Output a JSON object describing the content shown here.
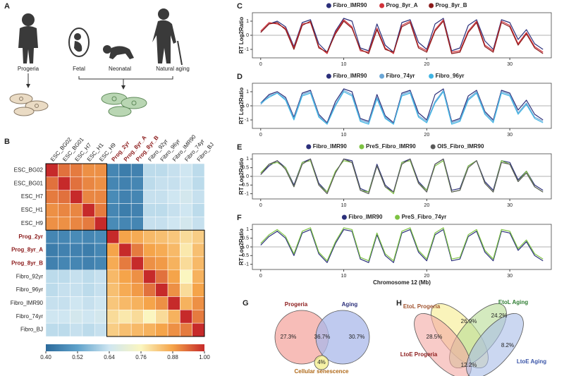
{
  "panel_labels": [
    "A",
    "B",
    "C",
    "D",
    "E",
    "F",
    "G",
    "H"
  ],
  "illustration": {
    "labels": [
      "Progeria",
      "Fetal",
      "Neonatal",
      "Natural aging"
    ]
  },
  "chart_data": [
    {
      "type": "heatmap",
      "rows": [
        "ESC_BG02",
        "ESC_BG01",
        "ESC_H7",
        "ESC_H1",
        "ESC_H9",
        "Prog_2yr",
        "Prog_8yr_A",
        "Prog_8yr_B",
        "Fibro_92yr",
        "Fibro_96yr",
        "Fibro_IMR90",
        "Fibro_74yr",
        "Fibro_BJ"
      ],
      "columns": [
        "ESC_BG02",
        "ESC_BG01",
        "ESC_H7",
        "ESC_H1",
        "ESC_H9",
        "Prog_2yr",
        "Prog_8yr_A",
        "Prog_8yr_B",
        "Fibro_92yr",
        "Fibro_96yr",
        "Fibro_IMR90",
        "Fibro_74yr",
        "Fibro_BJ"
      ],
      "label_colors": [
        "#222222",
        "#222222",
        "#222222",
        "#222222",
        "#222222",
        "#8b1a1a",
        "#8b1a1a",
        "#8b1a1a",
        "#222222",
        "#222222",
        "#222222",
        "#222222",
        "#222222"
      ],
      "values": [
        [
          1.0,
          0.93,
          0.92,
          0.9,
          0.9,
          0.46,
          0.44,
          0.45,
          0.62,
          0.62,
          0.63,
          0.64,
          0.62
        ],
        [
          0.93,
          1.0,
          0.93,
          0.91,
          0.9,
          0.46,
          0.45,
          0.46,
          0.62,
          0.63,
          0.63,
          0.64,
          0.62
        ],
        [
          0.92,
          0.93,
          1.0,
          0.91,
          0.91,
          0.47,
          0.45,
          0.46,
          0.63,
          0.63,
          0.64,
          0.65,
          0.63
        ],
        [
          0.9,
          0.91,
          0.91,
          1.0,
          0.92,
          0.46,
          0.44,
          0.45,
          0.62,
          0.62,
          0.63,
          0.64,
          0.62
        ],
        [
          0.9,
          0.9,
          0.91,
          0.92,
          1.0,
          0.47,
          0.46,
          0.46,
          0.63,
          0.63,
          0.64,
          0.65,
          0.63
        ],
        [
          0.46,
          0.46,
          0.47,
          0.46,
          0.47,
          1.0,
          0.88,
          0.87,
          0.85,
          0.84,
          0.83,
          0.8,
          0.82
        ],
        [
          0.44,
          0.45,
          0.45,
          0.44,
          0.46,
          0.88,
          1.0,
          0.92,
          0.88,
          0.87,
          0.85,
          0.78,
          0.84
        ],
        [
          0.45,
          0.46,
          0.46,
          0.45,
          0.46,
          0.87,
          0.92,
          1.0,
          0.9,
          0.89,
          0.86,
          0.8,
          0.85
        ],
        [
          0.62,
          0.62,
          0.63,
          0.62,
          0.63,
          0.85,
          0.88,
          0.9,
          1.0,
          0.93,
          0.88,
          0.76,
          0.86
        ],
        [
          0.62,
          0.63,
          0.63,
          0.62,
          0.63,
          0.84,
          0.87,
          0.89,
          0.93,
          1.0,
          0.9,
          0.8,
          0.88
        ],
        [
          0.63,
          0.63,
          0.64,
          0.63,
          0.64,
          0.83,
          0.85,
          0.86,
          0.88,
          0.9,
          1.0,
          0.86,
          0.9
        ],
        [
          0.64,
          0.64,
          0.65,
          0.64,
          0.65,
          0.8,
          0.78,
          0.8,
          0.76,
          0.8,
          0.86,
          1.0,
          0.92
        ],
        [
          0.62,
          0.62,
          0.63,
          0.62,
          0.63,
          0.82,
          0.84,
          0.85,
          0.86,
          0.88,
          0.9,
          0.92,
          1.0
        ]
      ],
      "colormap": [
        "#2b6a9b",
        "#5fa2cb",
        "#cfe6f1",
        "#fbf6c0",
        "#f5a44a",
        "#c62a2a"
      ],
      "colorbar_lim": [
        0.4,
        1
      ],
      "colorbar_ticks": [
        {
          "value": 0.4,
          "label": "0.40"
        },
        {
          "value": 0.52,
          "label": "0.52"
        },
        {
          "value": 0.64,
          "label": "0.64"
        },
        {
          "value": 0.76,
          "label": "0.76"
        },
        {
          "value": 0.88,
          "label": "0.88"
        },
        {
          "value": 1,
          "label": "1.00"
        }
      ]
    },
    {
      "type": "line",
      "ylabel": "RT Log2Ratio",
      "x": [
        0,
        1,
        2,
        3,
        4,
        5,
        6,
        7,
        8,
        9,
        10,
        11,
        12,
        13,
        14,
        15,
        16,
        17,
        18,
        19,
        20,
        21,
        22,
        23,
        24,
        25,
        26,
        27,
        28,
        29,
        30,
        31,
        32,
        33,
        34
      ],
      "xlim": [
        -1,
        35
      ],
      "xticks": [
        0,
        10,
        20,
        30
      ],
      "ylim": [
        -1.6,
        1.6
      ],
      "yticks": [
        -1,
        0,
        1
      ],
      "series": [
        {
          "name": "Fibro_IMR90",
          "color": "#2b2f7a",
          "values": [
            0.2,
            0.8,
            1.0,
            0.6,
            -0.8,
            0.9,
            1.1,
            -0.6,
            -1.2,
            0.3,
            1.2,
            1.0,
            -0.9,
            -1.1,
            0.8,
            -0.7,
            -1.2,
            0.9,
            1.1,
            -0.5,
            -1.0,
            0.8,
            1.2,
            -1.1,
            -0.9,
            0.7,
            1.1,
            -0.4,
            -1.0,
            1.1,
            0.9,
            -0.3,
            0.4,
            -0.6,
            -1.0
          ]
        },
        {
          "name": "Prog_8yr_A",
          "color": "#d2323a",
          "values": [
            0.3,
            0.9,
            0.8,
            0.5,
            -0.9,
            0.8,
            0.9,
            -0.8,
            -1.3,
            0.2,
            1.1,
            0.6,
            -1.1,
            -1.2,
            0.5,
            -0.9,
            -1.3,
            0.7,
            1.0,
            -0.8,
            -1.1,
            0.4,
            1.1,
            -1.2,
            -1.1,
            0.3,
            1.0,
            -0.7,
            -1.1,
            1.0,
            0.7,
            -0.6,
            0.2,
            -0.8,
            -1.2
          ]
        },
        {
          "name": "Prog_8yr_B",
          "color": "#8b1a1a",
          "values": [
            0.2,
            0.8,
            0.9,
            0.4,
            -1.0,
            0.7,
            1.0,
            -0.9,
            -1.2,
            0.1,
            1.0,
            0.5,
            -1.0,
            -1.3,
            0.4,
            -1.0,
            -1.2,
            0.6,
            0.9,
            -0.9,
            -1.2,
            0.3,
            1.0,
            -1.3,
            -1.2,
            0.2,
            0.9,
            -0.8,
            -1.2,
            0.9,
            0.6,
            -0.7,
            0.1,
            -0.9,
            -1.3
          ]
        }
      ]
    },
    {
      "type": "line",
      "ylabel": "RT Log2Ratio",
      "x": [
        0,
        1,
        2,
        3,
        4,
        5,
        6,
        7,
        8,
        9,
        10,
        11,
        12,
        13,
        14,
        15,
        16,
        17,
        18,
        19,
        20,
        21,
        22,
        23,
        24,
        25,
        26,
        27,
        28,
        29,
        30,
        31,
        32,
        33,
        34
      ],
      "xlim": [
        -1,
        35
      ],
      "xticks": [
        0,
        10,
        20,
        30
      ],
      "ylim": [
        -1.6,
        1.6
      ],
      "yticks": [
        -1,
        0,
        1
      ],
      "series": [
        {
          "name": "Fibro_IMR90",
          "color": "#2b2f7a",
          "values": [
            0.2,
            0.8,
            1.0,
            0.6,
            -0.8,
            0.9,
            1.1,
            -0.6,
            -1.2,
            0.3,
            1.2,
            1.0,
            -0.9,
            -1.1,
            0.8,
            -0.7,
            -1.2,
            0.9,
            1.1,
            -0.5,
            -1.0,
            0.8,
            1.2,
            -1.1,
            -0.9,
            0.7,
            1.1,
            -0.4,
            -1.0,
            1.1,
            0.9,
            -0.3,
            0.4,
            -0.6,
            -1.0
          ]
        },
        {
          "name": "Fibro_74yr",
          "color": "#6aa6d6",
          "values": [
            0.1,
            0.7,
            0.9,
            0.5,
            -0.9,
            0.8,
            1.0,
            -0.7,
            -1.3,
            0.1,
            1.1,
            0.8,
            -1.0,
            -1.2,
            0.6,
            -0.8,
            -1.3,
            0.8,
            1.0,
            -0.7,
            -1.1,
            0.3,
            1.1,
            -1.2,
            -1.0,
            0.5,
            1.0,
            -0.5,
            -1.1,
            1.0,
            0.8,
            -0.5,
            0.2,
            -0.8,
            -1.1
          ]
        },
        {
          "name": "Fibro_96yr",
          "color": "#3fb4e3",
          "values": [
            0.2,
            0.6,
            0.9,
            0.4,
            -1.0,
            0.7,
            0.9,
            -0.8,
            -1.3,
            0.0,
            1.0,
            0.7,
            -1.1,
            -1.3,
            0.5,
            -0.9,
            -1.3,
            0.7,
            0.9,
            -0.8,
            -1.2,
            0.2,
            1.0,
            -1.3,
            -1.1,
            0.4,
            0.9,
            -0.6,
            -1.2,
            0.9,
            0.7,
            -0.6,
            0.1,
            -0.9,
            -1.2
          ]
        }
      ]
    },
    {
      "type": "line",
      "ylabel": "RT Log2Ratio",
      "x": [
        0,
        1,
        2,
        3,
        4,
        5,
        6,
        7,
        8,
        9,
        10,
        11,
        12,
        13,
        14,
        15,
        16,
        17,
        18,
        19,
        20,
        21,
        22,
        23,
        24,
        25,
        26,
        27,
        28,
        29,
        30,
        31,
        32,
        33,
        34
      ],
      "xlim": [
        -1,
        35
      ],
      "xticks": [
        0,
        10,
        20,
        30
      ],
      "ylim": [
        -1.3,
        1.3
      ],
      "yticks": [
        -1,
        -0.5,
        0,
        0.5,
        1
      ],
      "series": [
        {
          "name": "Fibro_IMR90",
          "color": "#2b2f7a",
          "values": [
            0.1,
            0.6,
            0.9,
            0.5,
            -0.5,
            0.8,
            1.0,
            -0.4,
            -0.9,
            0.2,
            1.0,
            0.9,
            -0.7,
            -0.9,
            0.7,
            -0.5,
            -0.9,
            0.8,
            1.0,
            -0.3,
            -0.8,
            0.7,
            1.0,
            -0.8,
            -0.7,
            0.6,
            0.9,
            -0.3,
            -0.8,
            0.9,
            0.8,
            -0.2,
            0.3,
            -0.5,
            -0.8
          ]
        },
        {
          "name": "PreS_Fibro_IMR90",
          "color": "#7dc242",
          "values": [
            0.2,
            0.7,
            0.8,
            0.5,
            -0.6,
            0.8,
            0.9,
            -0.5,
            -0.9,
            0.3,
            0.9,
            0.8,
            -0.8,
            -0.9,
            0.6,
            -0.6,
            -1.0,
            0.8,
            0.9,
            -0.4,
            -0.8,
            0.6,
            0.9,
            -0.9,
            -0.8,
            0.6,
            0.9,
            -0.4,
            -0.9,
            0.9,
            0.7,
            -0.3,
            0.3,
            -0.6,
            -0.9
          ]
        },
        {
          "name": "OIS_Fibro_IMR90",
          "color": "#5a5a5a",
          "values": [
            0.1,
            0.7,
            0.9,
            0.4,
            -0.6,
            0.7,
            1.0,
            -0.5,
            -1.0,
            0.2,
            1.0,
            0.8,
            -0.8,
            -1.0,
            0.6,
            -0.6,
            -0.9,
            0.7,
            1.0,
            -0.4,
            -0.9,
            0.7,
            1.0,
            -0.9,
            -0.8,
            0.5,
            0.9,
            -0.4,
            -0.9,
            0.8,
            0.7,
            -0.3,
            0.2,
            -0.6,
            -0.9
          ]
        }
      ]
    },
    {
      "type": "line",
      "ylabel": "RT Log2Ratio",
      "xlabel": "Chromosome 12 (Mb)",
      "x": [
        0,
        1,
        2,
        3,
        4,
        5,
        6,
        7,
        8,
        9,
        10,
        11,
        12,
        13,
        14,
        15,
        16,
        17,
        18,
        19,
        20,
        21,
        22,
        23,
        24,
        25,
        26,
        27,
        28,
        29,
        30,
        31,
        32,
        33,
        34
      ],
      "xlim": [
        -1,
        35
      ],
      "xticks": [
        0,
        10,
        20,
        30
      ],
      "ylim": [
        -1.3,
        1.3
      ],
      "yticks": [
        -1,
        -0.5,
        0,
        0.5,
        1
      ],
      "series": [
        {
          "name": "Fibro_IMR90",
          "color": "#2b2f7a",
          "values": [
            0.1,
            0.6,
            0.9,
            0.5,
            -0.5,
            0.8,
            1.0,
            -0.4,
            -0.9,
            0.2,
            1.0,
            0.9,
            -0.7,
            -0.9,
            0.7,
            -0.5,
            -0.9,
            0.8,
            1.0,
            -0.3,
            -0.8,
            0.7,
            1.0,
            -0.8,
            -0.7,
            0.6,
            0.9,
            -0.3,
            -0.8,
            0.9,
            0.8,
            -0.2,
            0.3,
            -0.5,
            -0.8
          ]
        },
        {
          "name": "PreS_Fibro_74yr",
          "color": "#7dc242",
          "values": [
            0.2,
            0.7,
            1.0,
            0.6,
            -0.4,
            0.9,
            1.1,
            -0.3,
            -0.8,
            0.3,
            1.1,
            1.0,
            -0.6,
            -0.8,
            0.8,
            -0.4,
            -0.8,
            0.9,
            1.1,
            -0.2,
            -0.7,
            0.8,
            1.1,
            -0.7,
            -0.6,
            0.7,
            1.0,
            -0.2,
            -0.7,
            1.0,
            0.9,
            -0.1,
            0.4,
            -0.4,
            -0.7
          ]
        }
      ]
    },
    {
      "type": "venn",
      "sets": [
        {
          "name": "Progeria",
          "color": "#f4a7a0",
          "label_color": "#8b1a1a"
        },
        {
          "name": "Aging",
          "color": "#a9b8ea",
          "label_color": "#2b2f7a"
        },
        {
          "name": "Cellular senescence",
          "color": "#f3ee8a",
          "label_color": "#b06a1a"
        }
      ],
      "values": [
        27.3,
        36.7,
        30.7,
        4
      ],
      "value_labels": [
        "27.3%",
        "36.7%",
        "30.7%",
        "4%"
      ]
    },
    {
      "type": "venn4",
      "sets": [
        {
          "name": "EtoL Progeria",
          "color": "#f6ec8e",
          "label_color": "#a0522d"
        },
        {
          "name": "EtoL Aging",
          "color": "#b8dc94",
          "label_color": "#2e7d32"
        },
        {
          "name": "LtoE Progeria",
          "color": "#f3a9a3",
          "label_color": "#8b1a1a"
        },
        {
          "name": "LtoE Aging",
          "color": "#a8bce8",
          "label_color": "#3a55a8"
        }
      ],
      "values": [
        28.5,
        26.9,
        24.2,
        8.2,
        12.2
      ],
      "value_labels": [
        "28.5%",
        "26.9%",
        "24.2%",
        "8.2%",
        "12.2%"
      ]
    }
  ]
}
